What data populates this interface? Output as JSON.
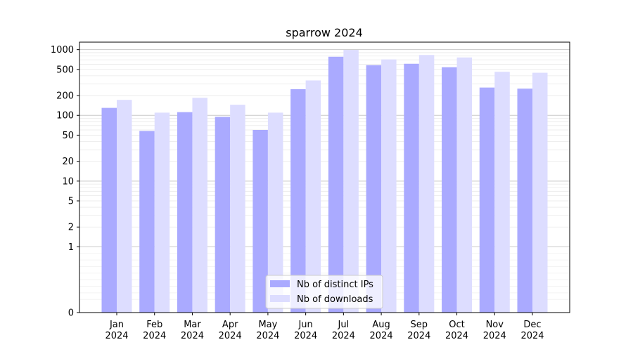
{
  "chart_data": {
    "type": "bar",
    "title": "sparrow 2024",
    "xlabel": "",
    "ylabel": "",
    "yscale": "symlog",
    "ylim": [
      0,
      1300
    ],
    "grid": "horizontal",
    "legend_position": "bottom-center",
    "categories": [
      [
        "Jan",
        "2024"
      ],
      [
        "Feb",
        "2024"
      ],
      [
        "Mar",
        "2024"
      ],
      [
        "Apr",
        "2024"
      ],
      [
        "May",
        "2024"
      ],
      [
        "Jun",
        "2024"
      ],
      [
        "Jul",
        "2024"
      ],
      [
        "Aug",
        "2024"
      ],
      [
        "Sep",
        "2024"
      ],
      [
        "Oct",
        "2024"
      ],
      [
        "Nov",
        "2024"
      ],
      [
        "Dec",
        "2024"
      ]
    ],
    "yticks": [
      {
        "value": 0,
        "label": "0"
      },
      {
        "value": 1,
        "label": "1"
      },
      {
        "value": 2,
        "label": "2"
      },
      {
        "value": 5,
        "label": "5"
      },
      {
        "value": 10,
        "label": "10"
      },
      {
        "value": 20,
        "label": "20"
      },
      {
        "value": 50,
        "label": "50"
      },
      {
        "value": 100,
        "label": "100"
      },
      {
        "value": 200,
        "label": "200"
      },
      {
        "value": 500,
        "label": "500"
      },
      {
        "value": 1000,
        "label": "1000"
      }
    ],
    "series": [
      {
        "name": "Nb of distinct IPs",
        "color": "#aaaaff",
        "values": [
          130,
          58,
          112,
          95,
          60,
          250,
          780,
          580,
          610,
          540,
          265,
          255
        ]
      },
      {
        "name": "Nb of downloads",
        "color": "#ddddff",
        "values": [
          172,
          110,
          185,
          145,
          110,
          340,
          990,
          710,
          830,
          760,
          460,
          445
        ]
      }
    ]
  }
}
